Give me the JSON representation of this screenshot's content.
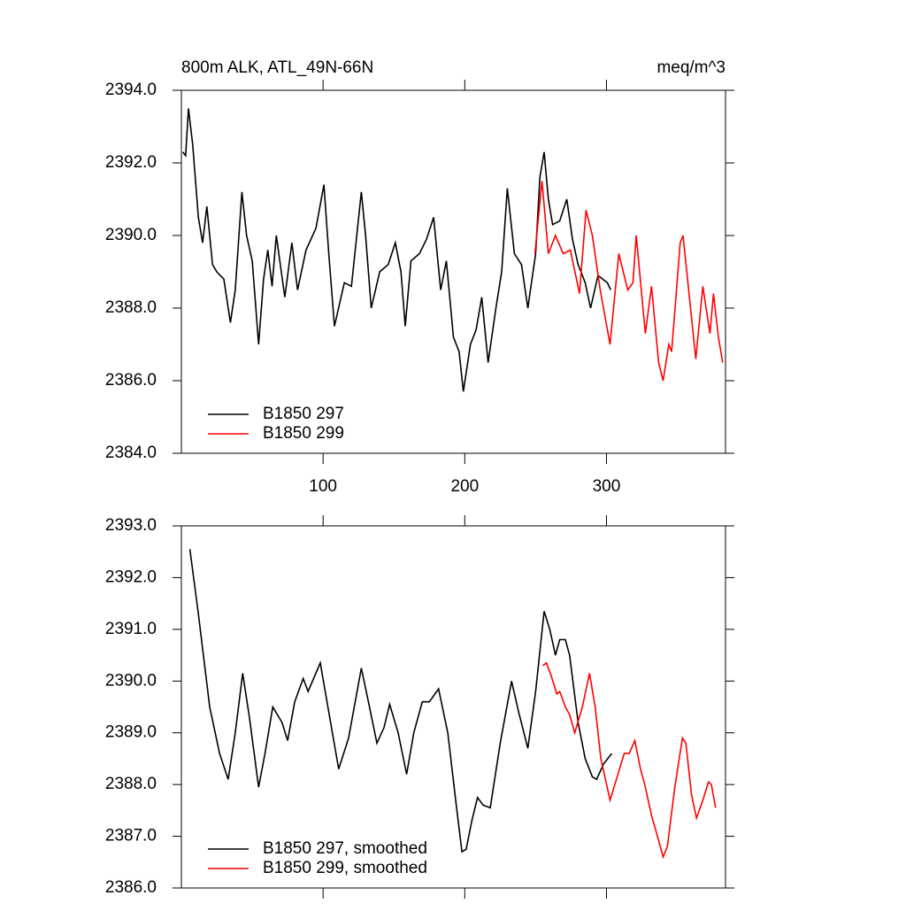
{
  "chart_data": [
    {
      "type": "line",
      "title": "800m ALK, ATL_49N-66N",
      "units": "meq/m^3",
      "xlim": [
        0,
        384
      ],
      "xticks": [
        100,
        200,
        300
      ],
      "show_xtick_labels": true,
      "ylim": [
        2384,
        2394
      ],
      "yticks": [
        {
          "value": 2384,
          "label": "2384.0"
        },
        {
          "value": 2386,
          "label": "2386.0"
        },
        {
          "value": 2388,
          "label": "2388.0"
        },
        {
          "value": 2390,
          "label": "2390.0"
        },
        {
          "value": 2392,
          "label": "2392.0"
        },
        {
          "value": 2394,
          "label": "2394.0"
        }
      ],
      "legend": "lower left",
      "series": [
        {
          "name": "B1850 297",
          "color": "#000000",
          "x": [
            1,
            3,
            5,
            8,
            12,
            15,
            18,
            20,
            22,
            25,
            30,
            34.6,
            38,
            42.7,
            46,
            50,
            54.5,
            58,
            61,
            64,
            67,
            73,
            78,
            82,
            88,
            95,
            100.6,
            104,
            108,
            115,
            120,
            127,
            130,
            134,
            140,
            146,
            151,
            155,
            158,
            162,
            168,
            173,
            178,
            183,
            187,
            192,
            196,
            199,
            204,
            208,
            212,
            216.5,
            222,
            226,
            230,
            235,
            240,
            244.5,
            250,
            253,
            256,
            259,
            262,
            267,
            272,
            276,
            280,
            285,
            288.8,
            294,
            300.6,
            303
          ],
          "values": [
            2392.3,
            2392.2,
            2393.5,
            2392.5,
            2390.5,
            2389.8,
            2390.8,
            2390.0,
            2389.2,
            2389.0,
            2388.8,
            2387.6,
            2388.5,
            2391.2,
            2390.0,
            2389.3,
            2387.0,
            2388.8,
            2389.6,
            2388.6,
            2390.0,
            2388.3,
            2389.8,
            2388.5,
            2389.6,
            2390.2,
            2391.4,
            2389.5,
            2387.5,
            2388.7,
            2388.6,
            2391.2,
            2390.0,
            2388.0,
            2389.0,
            2389.2,
            2389.8,
            2389.0,
            2387.5,
            2389.3,
            2389.5,
            2389.9,
            2390.5,
            2388.5,
            2389.3,
            2387.2,
            2386.8,
            2385.7,
            2387.0,
            2387.4,
            2388.3,
            2386.5,
            2388.0,
            2389.0,
            2391.3,
            2389.5,
            2389.2,
            2388.0,
            2389.5,
            2391.6,
            2392.3,
            2391.0,
            2390.3,
            2390.4,
            2391.0,
            2389.9,
            2389.2,
            2388.7,
            2388.0,
            2388.9,
            2388.7,
            2388.5
          ]
        },
        {
          "name": "B1850 299",
          "color": "#ff0000",
          "x": [
            249.5,
            254.5,
            259,
            264,
            269.5,
            274.5,
            281,
            285.6,
            290,
            295.6,
            302.5,
            308.7,
            315,
            318.7,
            321,
            327.4,
            331.8,
            336.8,
            340,
            344,
            346,
            352,
            354,
            363,
            368,
            373,
            375.5,
            379,
            382
          ],
          "values": [
            2389.5,
            2391.5,
            2389.5,
            2390.0,
            2389.5,
            2389.6,
            2388.4,
            2390.7,
            2390.0,
            2388.5,
            2387.0,
            2389.5,
            2388.5,
            2388.7,
            2390.0,
            2387.3,
            2388.6,
            2386.5,
            2386.0,
            2387.0,
            2386.8,
            2389.8,
            2390.0,
            2386.6,
            2388.6,
            2387.3,
            2388.4,
            2387.2,
            2386.5
          ]
        }
      ]
    },
    {
      "type": "line",
      "xlim": [
        0,
        384
      ],
      "xticks": [
        100,
        200,
        300
      ],
      "show_xtick_labels": false,
      "ylim": [
        2386,
        2393
      ],
      "yticks": [
        {
          "value": 2386,
          "label": "2386.0"
        },
        {
          "value": 2387,
          "label": "2387.0"
        },
        {
          "value": 2388,
          "label": "2388.0"
        },
        {
          "value": 2389,
          "label": "2389.0"
        },
        {
          "value": 2390,
          "label": "2390.0"
        },
        {
          "value": 2391,
          "label": "2391.0"
        },
        {
          "value": 2392,
          "label": "2392.0"
        },
        {
          "value": 2393,
          "label": "2393.0"
        }
      ],
      "legend": "lower left",
      "series": [
        {
          "name": "B1850 297, smoothed",
          "color": "#000000",
          "x": [
            6,
            12,
            20,
            27,
            33,
            38,
            43.3,
            48,
            54.5,
            59,
            64.5,
            71,
            75,
            80,
            86,
            89.4,
            98,
            104,
            111,
            118,
            127,
            132,
            138,
            143,
            147,
            153,
            159,
            164,
            170,
            175,
            181.5,
            188,
            194,
            198,
            201,
            205,
            209,
            213,
            218,
            225,
            233,
            238,
            244.5,
            250,
            256,
            260,
            264,
            267,
            271,
            274,
            280,
            285,
            290,
            293,
            298,
            303.7
          ],
          "values": [
            2392.55,
            2391.3,
            2389.5,
            2388.6,
            2388.1,
            2389.0,
            2390.15,
            2389.3,
            2387.95,
            2388.6,
            2389.5,
            2389.2,
            2388.85,
            2389.6,
            2390.05,
            2389.8,
            2390.35,
            2389.4,
            2388.3,
            2388.9,
            2390.25,
            2389.6,
            2388.8,
            2389.1,
            2389.55,
            2389.0,
            2388.2,
            2389.0,
            2389.6,
            2389.6,
            2389.85,
            2389.0,
            2387.6,
            2386.7,
            2386.75,
            2387.3,
            2387.75,
            2387.6,
            2387.55,
            2388.8,
            2390.0,
            2389.4,
            2388.7,
            2389.8,
            2391.35,
            2391.0,
            2390.5,
            2390.8,
            2390.8,
            2390.5,
            2389.2,
            2388.5,
            2388.15,
            2388.1,
            2388.4,
            2388.6
          ]
        },
        {
          "name": "B1850 299, smoothed",
          "color": "#ff0000",
          "x": [
            255,
            257.6,
            261,
            265,
            267,
            271,
            274,
            277.6,
            283,
            288,
            292,
            296,
            302.5,
            307,
            312.5,
            316,
            320,
            324,
            327,
            331.8,
            336,
            340,
            343,
            348,
            353.6,
            356,
            360,
            363.5,
            368,
            372,
            374,
            377
          ],
          "values": [
            2390.3,
            2390.35,
            2390.1,
            2389.75,
            2389.8,
            2389.5,
            2389.35,
            2389.0,
            2389.5,
            2390.15,
            2389.5,
            2388.5,
            2387.7,
            2388.1,
            2388.6,
            2388.6,
            2388.85,
            2388.3,
            2388.0,
            2387.4,
            2387.0,
            2386.6,
            2386.8,
            2387.9,
            2388.9,
            2388.8,
            2387.8,
            2387.35,
            2387.7,
            2388.05,
            2388.0,
            2387.55
          ]
        }
      ]
    }
  ]
}
